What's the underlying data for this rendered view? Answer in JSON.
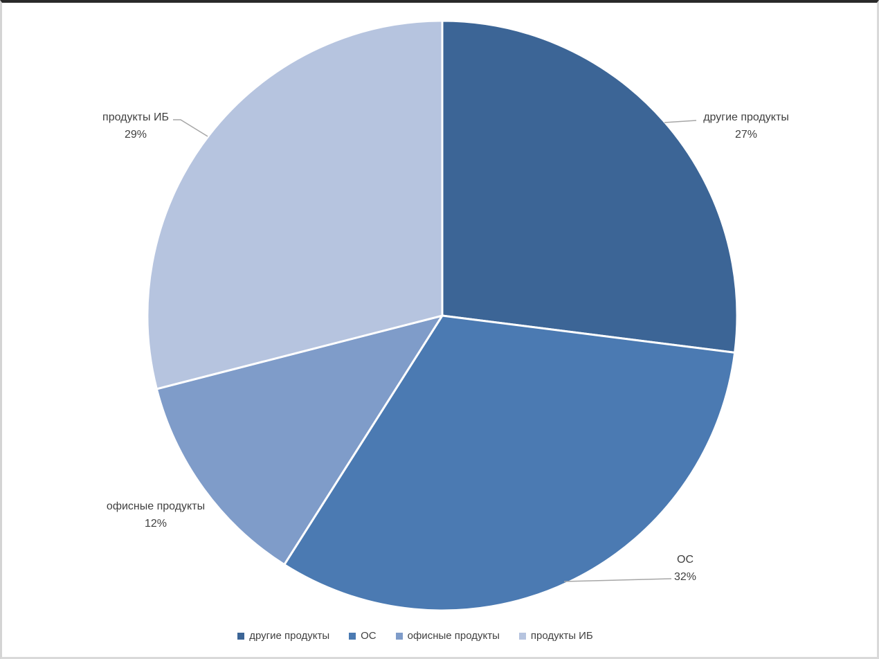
{
  "chart_data": {
    "type": "pie",
    "title": "",
    "categories": [
      "другие продукты",
      "ОС",
      "офисные продукты",
      "продукты ИБ"
    ],
    "values": [
      27,
      32,
      12,
      29
    ],
    "slices": [
      {
        "label": "другие продукты",
        "value": 27,
        "percent_label": "27%",
        "color": "#3C6596"
      },
      {
        "label": "ОС",
        "value": 32,
        "percent_label": "32%",
        "color": "#4B7AB2"
      },
      {
        "label": "офисные продукты",
        "value": 12,
        "percent_label": "12%",
        "color": "#7F9CC9"
      },
      {
        "label": "продукты ИБ",
        "value": 29,
        "percent_label": "29%",
        "color": "#B6C4DF"
      }
    ],
    "start_angle_deg": 0,
    "direction": "clockwise",
    "legend_position": "bottom",
    "label_color": "#404040",
    "leader_line_color": "#A6A6A6",
    "slice_border_color": "#FFFFFF"
  }
}
